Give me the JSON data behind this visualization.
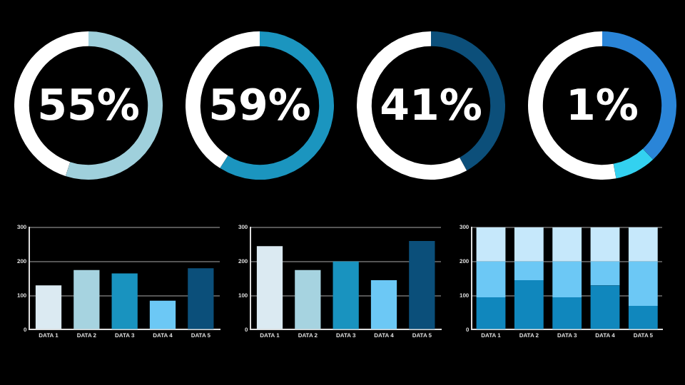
{
  "chart_data": [
    {
      "type": "donut",
      "title": "55%",
      "categories": [
        null,
        null
      ],
      "values": [
        55,
        45
      ],
      "colors": [
        "#9fd0dc",
        "#ffffff"
      ],
      "legend": false
    },
    {
      "type": "donut",
      "title": "59%",
      "categories": [
        null,
        null
      ],
      "values": [
        59,
        41
      ],
      "colors": [
        "#1b95bf",
        "#ffffff"
      ],
      "legend": false
    },
    {
      "type": "donut",
      "title": "41%",
      "categories": [
        null,
        null
      ],
      "values": [
        42,
        58
      ],
      "colors": [
        "#0c4f7a",
        "#ffffff"
      ],
      "legend": false
    },
    {
      "type": "donut",
      "title": "1%",
      "categories": [
        null,
        null,
        null
      ],
      "values": [
        38,
        9,
        53
      ],
      "colors": [
        "#2a85d8",
        "#33d1f0",
        "#ffffff"
      ],
      "legend": false
    },
    {
      "type": "bar",
      "categories": [
        "DATA 1",
        "DATA 2",
        "DATA 3",
        "DATA 4",
        "DATA 5"
      ],
      "values": [
        130,
        175,
        165,
        85,
        180
      ],
      "colors": [
        "#dbeaf2",
        "#a6d3e0",
        "#1993bf",
        "#6cc8f5",
        "#0b4f7a"
      ],
      "ylim": [
        0,
        300
      ],
      "yticks": [
        0,
        100,
        200,
        300
      ],
      "grid": "y",
      "legend": false
    },
    {
      "type": "bar",
      "categories": [
        "DATA 1",
        "DATA 2",
        "DATA 3",
        "DATA 4",
        "DATA 5"
      ],
      "values": [
        245,
        175,
        200,
        145,
        260
      ],
      "colors": [
        "#dbeaf2",
        "#a6d3e0",
        "#1993bf",
        "#6cc8f5",
        "#0b4f7a"
      ],
      "ylim": [
        0,
        300
      ],
      "yticks": [
        0,
        100,
        200,
        300
      ],
      "grid": "y",
      "legend": false
    },
    {
      "type": "bar",
      "stacked": true,
      "categories": [
        "DATA 1",
        "DATA 2",
        "DATA 3",
        "DATA 4",
        "DATA 5"
      ],
      "series": [
        {
          "color": "#1087bd",
          "values": [
            95,
            145,
            95,
            130,
            70
          ]
        },
        {
          "color": "#6cc8f5",
          "values": [
            105,
            55,
            105,
            70,
            130
          ]
        },
        {
          "color": "#c6e8fb",
          "values": [
            100,
            100,
            100,
            100,
            100
          ]
        }
      ],
      "ylim": [
        0,
        300
      ],
      "yticks": [
        0,
        100,
        200,
        300
      ],
      "grid": "y",
      "legend": false
    }
  ]
}
